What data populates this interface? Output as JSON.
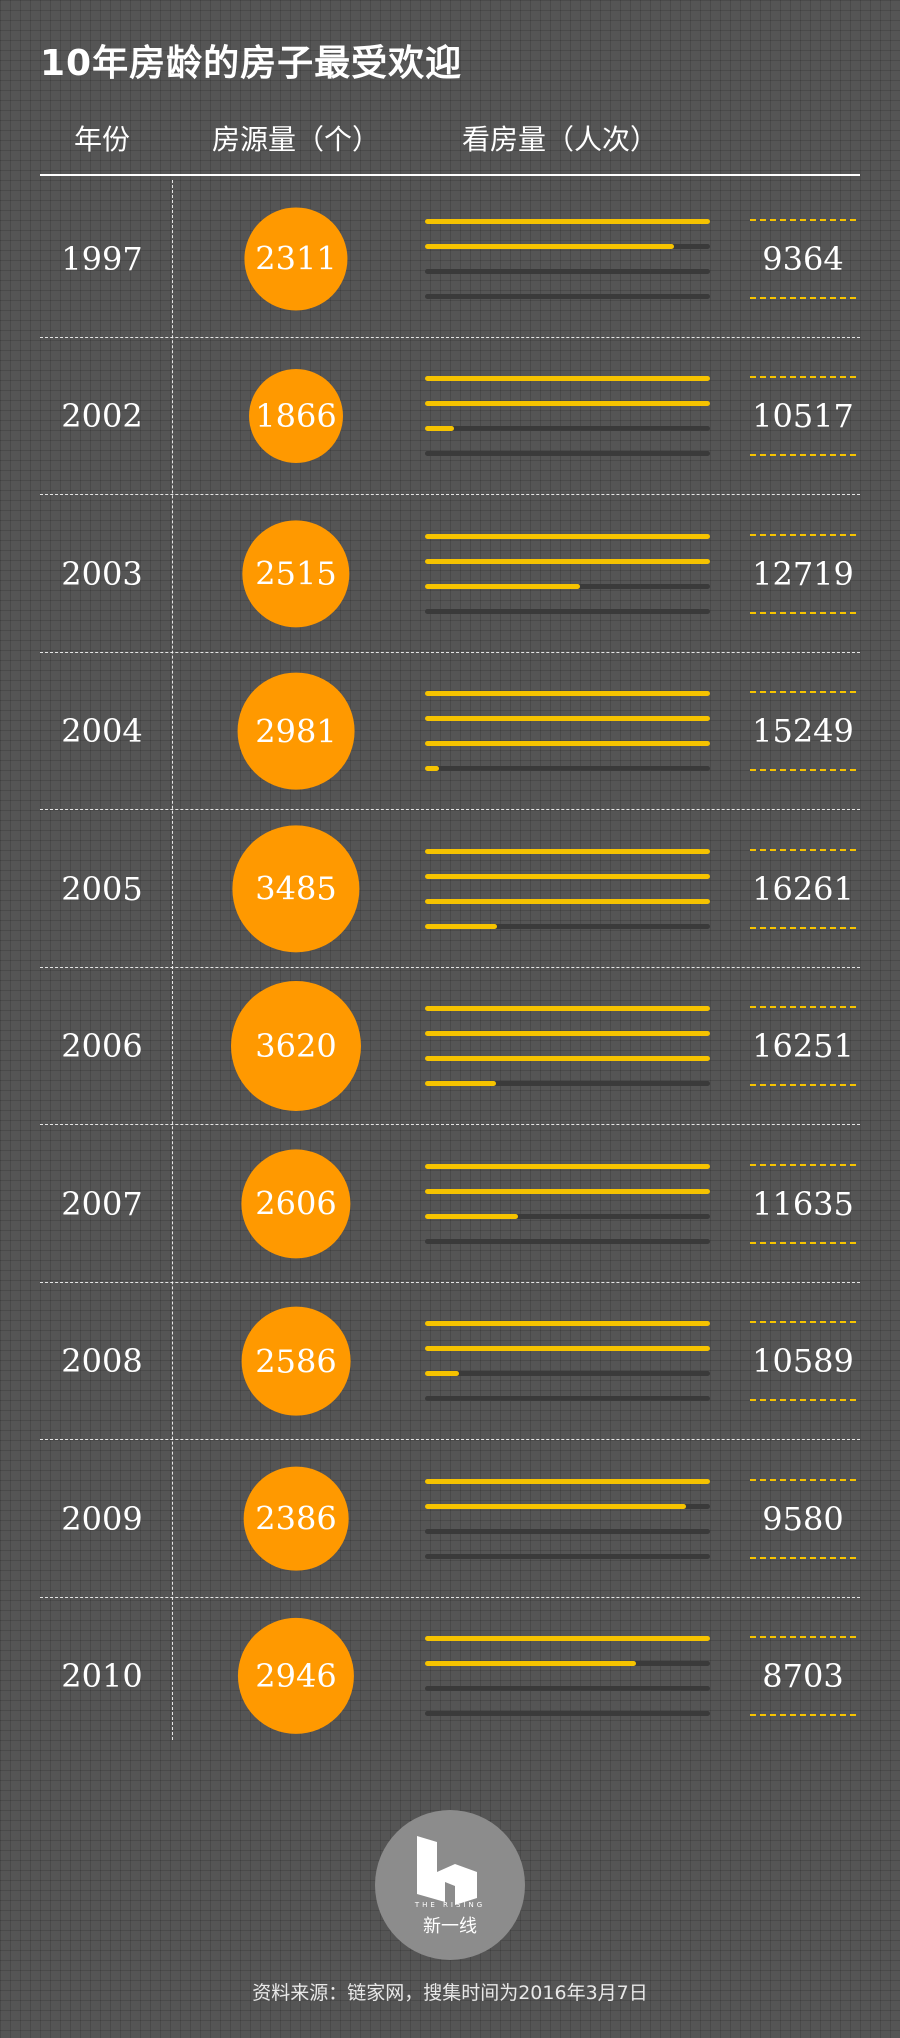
{
  "title": "10年房龄的房子最受欢迎",
  "headers": {
    "year": "年份",
    "listings": "房源量（个）",
    "views": "看房量（人次）"
  },
  "chart_data": {
    "type": "table",
    "title": "10年房龄的房子最受欢迎",
    "columns": [
      "年份",
      "房源量（个）",
      "看房量（人次）"
    ],
    "rows": [
      {
        "year": "1997",
        "listings": 2311,
        "views": 9364
      },
      {
        "year": "2002",
        "listings": 1866,
        "views": 10517
      },
      {
        "year": "2003",
        "listings": 2515,
        "views": 12719
      },
      {
        "year": "2004",
        "listings": 2981,
        "views": 15249
      },
      {
        "year": "2005",
        "listings": 3485,
        "views": 16261
      },
      {
        "year": "2006",
        "listings": 3620,
        "views": 16251
      },
      {
        "year": "2007",
        "listings": 2606,
        "views": 11635
      },
      {
        "year": "2008",
        "listings": 2586,
        "views": 10589
      },
      {
        "year": "2009",
        "listings": 2386,
        "views": 9580
      },
      {
        "year": "2010",
        "listings": 2946,
        "views": 8703
      }
    ],
    "bar_unit_views": 5000,
    "bar_count": 4
  },
  "colors": {
    "bubble": "#ff9900",
    "bar": "#f6c300",
    "track": "#3a3a3a",
    "background": "#555555"
  },
  "logo": {
    "name": "新一线",
    "sub": "THE RISING"
  },
  "source": "资料来源：链家网，搜集时间为2016年3月7日"
}
